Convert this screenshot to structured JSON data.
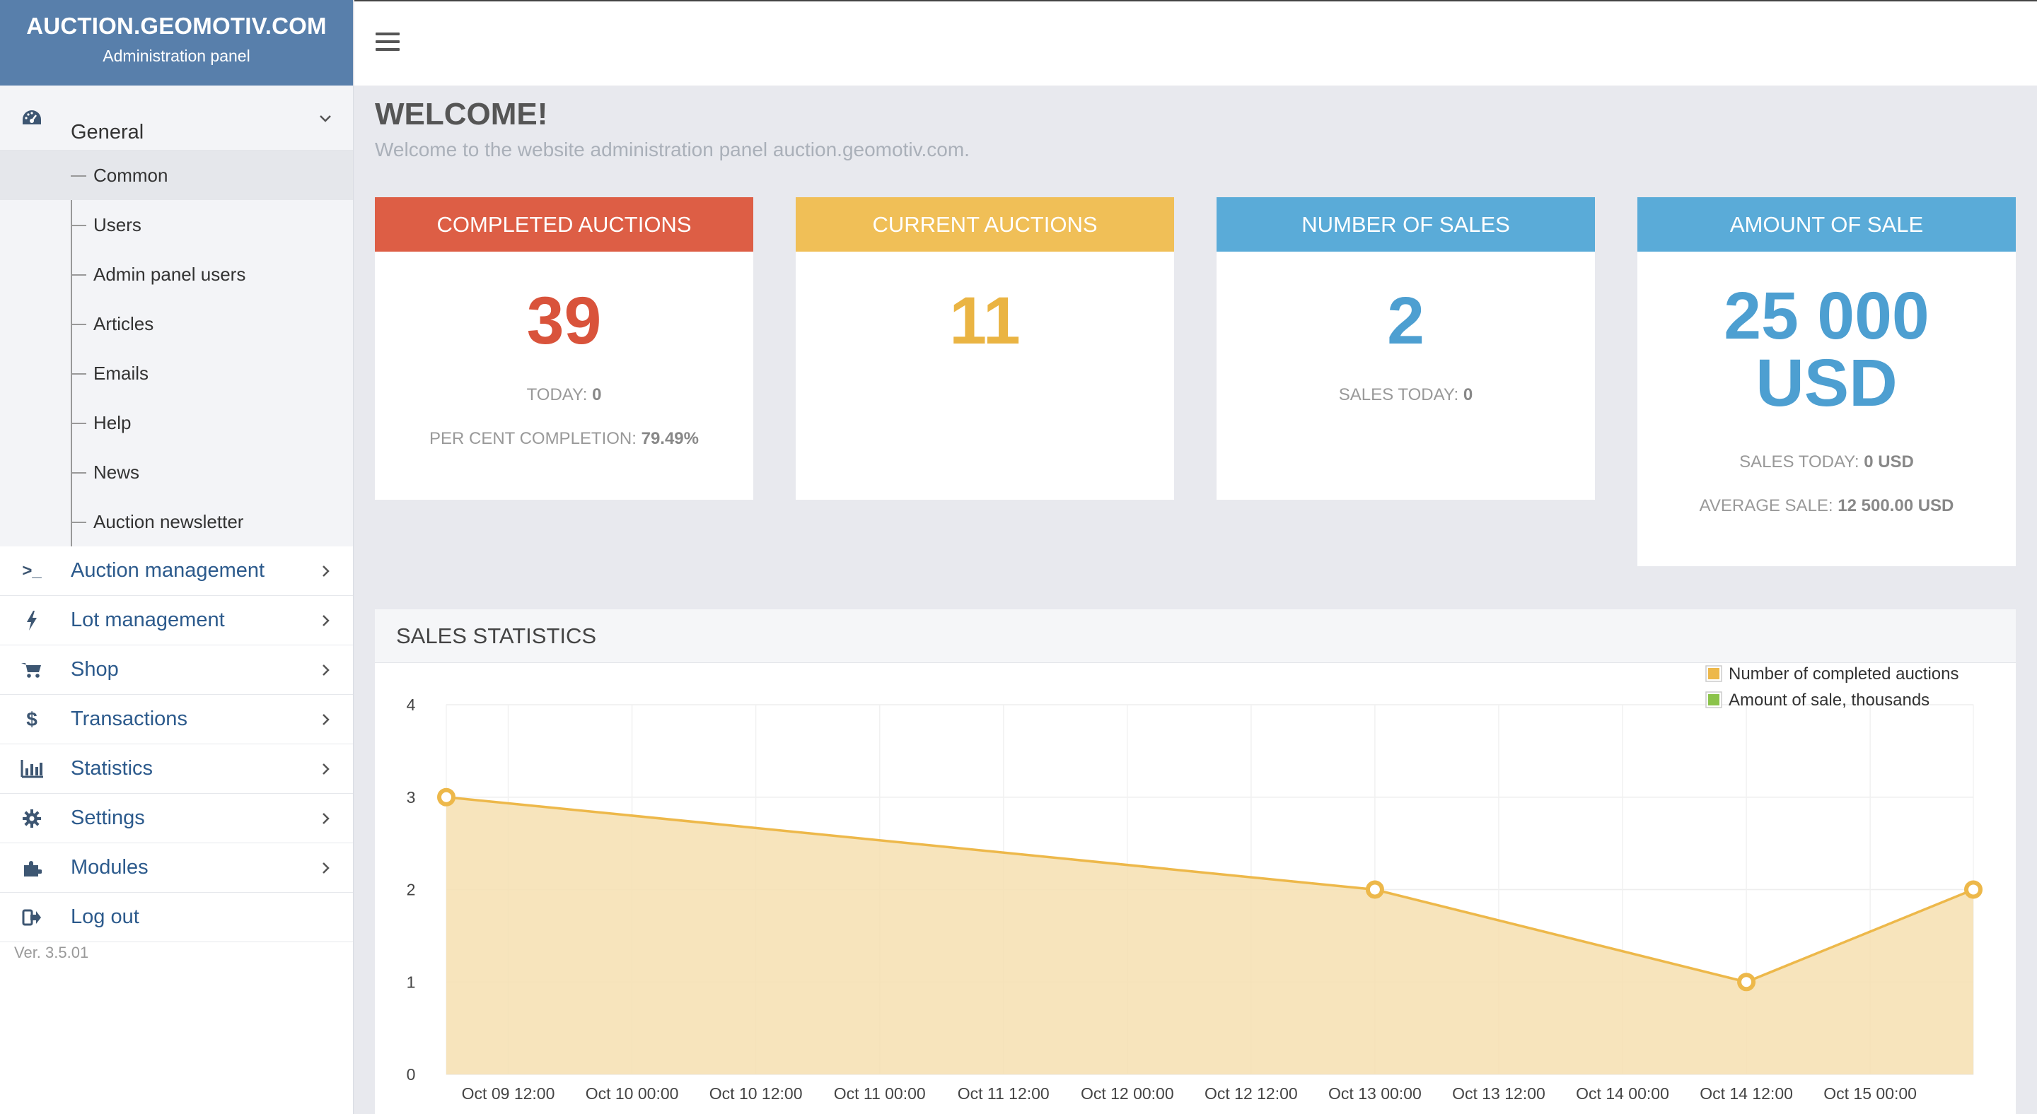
{
  "brand": {
    "title": "AUCTION.GEOMOTIV.COM",
    "subtitle": "Administration panel"
  },
  "sidebar": {
    "general": {
      "label": "General",
      "icon": "dashboard-icon"
    },
    "submenu": [
      {
        "label": "Common",
        "active": true
      },
      {
        "label": "Users"
      },
      {
        "label": "Admin panel users"
      },
      {
        "label": "Articles"
      },
      {
        "label": "Emails"
      },
      {
        "label": "Help"
      },
      {
        "label": "News"
      },
      {
        "label": "Auction newsletter"
      }
    ],
    "items": [
      {
        "label": "Auction management",
        "icon": "terminal-icon",
        "glyph": ">_"
      },
      {
        "label": "Lot management",
        "icon": "bolt-icon",
        "glyph": "ϟ"
      },
      {
        "label": "Shop",
        "icon": "cart-icon",
        "glyph": "🛒"
      },
      {
        "label": "Transactions",
        "icon": "dollar-icon",
        "glyph": "$"
      },
      {
        "label": "Statistics",
        "icon": "bar-chart-icon",
        "glyph": "▥"
      },
      {
        "label": "Settings",
        "icon": "gear-icon",
        "glyph": "⚙"
      },
      {
        "label": "Modules",
        "icon": "puzzle-icon",
        "glyph": "✣"
      },
      {
        "label": "Log out",
        "icon": "logout-icon",
        "glyph": "⇥"
      }
    ],
    "version": "Ver. 3.5.01"
  },
  "main": {
    "title": "WELCOME!",
    "subtitle": "Welcome to the website administration panel auction.geomotiv.com."
  },
  "cards": {
    "completed": {
      "title": "COMPLETED AUCTIONS",
      "value": "39",
      "today_label": "TODAY:",
      "today_value": "0",
      "percent_label": "PER CENT COMPLETION:",
      "percent_value": "79.49%"
    },
    "current": {
      "title": "CURRENT AUCTIONS",
      "value": "11"
    },
    "sales": {
      "title": "NUMBER OF SALES",
      "value": "2",
      "today_label": "SALES TODAY:",
      "today_value": "0"
    },
    "amount": {
      "title": "AMOUNT OF SALE",
      "value_line1": "25 000",
      "value_line2": "USD",
      "today_label": "SALES TODAY:",
      "today_value": "0 USD",
      "avg_label": "AVERAGE SALE:",
      "avg_value": "12 500.00 USD"
    }
  },
  "stats": {
    "title": "SALES STATISTICS"
  },
  "colors": {
    "sidebar_brand": "#587fab",
    "completed": "#dd5e45",
    "current": "#f0bf57",
    "blue": "#5aabd8",
    "area_fill": "#f6dfb0",
    "area_line": "#edb84a",
    "legend_green": "#8bc34a"
  },
  "chart_data": {
    "type": "area",
    "x_ticks": [
      "Oct 09 12:00",
      "Oct 10 00:00",
      "Oct 10 12:00",
      "Oct 11 00:00",
      "Oct 11 12:00",
      "Oct 12 00:00",
      "Oct 12 12:00",
      "Oct 13 00:00",
      "Oct 13 12:00",
      "Oct 14 00:00",
      "Oct 14 12:00",
      "Oct 15 00:00"
    ],
    "x_range": [
      "Oct 09 06:00",
      "Oct 15 10:00"
    ],
    "ylim": [
      0,
      4
    ],
    "y_ticks": [
      0,
      1,
      2,
      3,
      4
    ],
    "grid": true,
    "legend_position": "top-right",
    "series": [
      {
        "name": "Number of completed auctions",
        "color": "#edb84a",
        "points": [
          {
            "x": "Oct 09 06:00",
            "y": 3
          },
          {
            "x": "Oct 13 00:00",
            "y": 2
          },
          {
            "x": "Oct 14 12:00",
            "y": 1
          },
          {
            "x": "Oct 15 10:00",
            "y": 2
          }
        ]
      },
      {
        "name": "Amount of sale, thousands",
        "color": "#8bc34a",
        "points": []
      }
    ]
  }
}
